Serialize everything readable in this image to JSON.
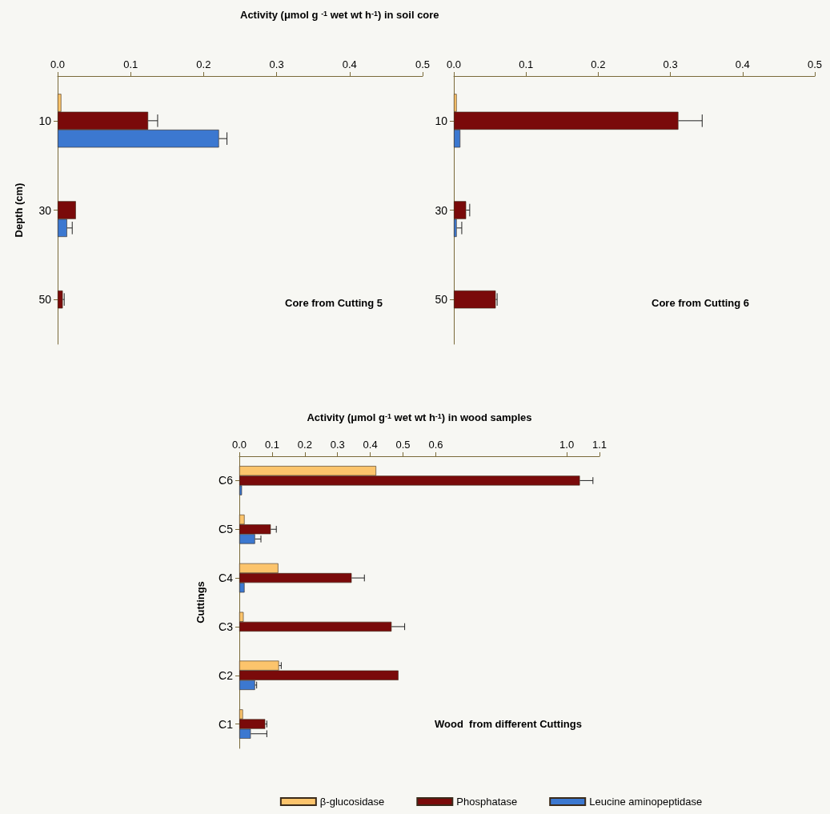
{
  "chart_data": [
    {
      "type": "bar",
      "orientation": "horizontal",
      "title": "Activity (μmol g $^{-1}$ wet wt h$^{-1}$) in soil core",
      "ylabel": "Depth (cm)",
      "annotations": [
        "Core from Cutting 5"
      ],
      "categories": [
        "10",
        "30",
        "50"
      ],
      "xlim": [
        0,
        0.5
      ],
      "xticks": [
        {
          "value": 0,
          "label": "0.0"
        },
        {
          "value": 0.1,
          "label": "0.1"
        },
        {
          "value": 0.2,
          "label": "0.2"
        },
        {
          "value": 0.3,
          "label": "0.3"
        },
        {
          "value": 0.4,
          "label": "0.4"
        },
        {
          "value": 0.5,
          "label": "0.5"
        }
      ],
      "series": [
        {
          "color": "#fcc46c",
          "values": [
            0.005,
            null,
            null
          ]
        },
        {
          "color": "#7a0a0a",
          "values": [
            0.124,
            0.025,
            0.007
          ],
          "errors": [
            [
              0.124,
              0.137
            ],
            null,
            [
              0.007,
              0.009
            ]
          ]
        },
        {
          "color": "#3c78d0",
          "values": [
            0.221,
            0.013,
            null
          ],
          "errors": [
            [
              0.221,
              0.232
            ],
            [
              0.013,
              0.02
            ],
            null
          ]
        }
      ]
    },
    {
      "type": "bar",
      "orientation": "horizontal",
      "annotations": [
        "Core from Cutting 6"
      ],
      "categories": [
        "10",
        "30",
        "50"
      ],
      "xlim": [
        0,
        0.5
      ],
      "xticks": [
        {
          "value": 0,
          "label": "0.0"
        },
        {
          "value": 0.1,
          "label": "0.1"
        },
        {
          "value": 0.2,
          "label": "0.2"
        },
        {
          "value": 0.3,
          "label": "0.3"
        },
        {
          "value": 0.4,
          "label": "0.4"
        },
        {
          "value": 0.5,
          "label": "0.5"
        }
      ],
      "series": [
        {
          "color": "#fcc46c",
          "values": [
            0.004,
            null,
            null
          ]
        },
        {
          "color": "#7a0a0a",
          "values": [
            0.311,
            0.017,
            0.058
          ],
          "errors": [
            [
              0.311,
              0.344
            ],
            [
              0.017,
              0.022
            ],
            [
              0.058,
              0.06
            ]
          ]
        },
        {
          "color": "#3c78d0",
          "values": [
            0.009,
            0.004,
            null
          ],
          "errors": [
            null,
            [
              0.004,
              0.011
            ],
            null
          ]
        }
      ]
    },
    {
      "type": "bar",
      "orientation": "horizontal",
      "xlabel": "Activity (μmol g$^{-1}$ wet wt h$^{-1}$) in wood samples",
      "ylabel": "Cuttings",
      "annotations": [
        "Wood  from different Cuttings"
      ],
      "categories": [
        "C6",
        "C5",
        "C4",
        "C3",
        "C2",
        "C1"
      ],
      "legend": "bottom",
      "xlim": [
        0,
        1.1
      ],
      "xticks": [
        {
          "value": 0,
          "label": "0.0"
        },
        {
          "value": 0.1,
          "label": "0.1"
        },
        {
          "value": 0.2,
          "label": "0.2"
        },
        {
          "value": 0.3,
          "label": "0.3"
        },
        {
          "value": 0.4,
          "label": "0.4"
        },
        {
          "value": 0.5,
          "label": "0.5"
        },
        {
          "value": 0.6,
          "label": "0.6"
        },
        {
          "value": 1.0,
          "label": "1.0"
        },
        {
          "value": 1.1,
          "label": "1.1"
        }
      ],
      "series": [
        {
          "name": "β-glucosidase",
          "color": "#fcc46c",
          "values": [
            0.418,
            0.016,
            0.119,
            0.013,
            0.121,
            0.011
          ],
          "errors": [
            null,
            null,
            null,
            null,
            [
              0.121,
              0.128
            ],
            null
          ]
        },
        {
          "name": "Phosphatase",
          "color": "#7a0a0a",
          "values": [
            1.04,
            0.096,
            0.343,
            0.465,
            0.486,
            0.079
          ],
          "errors": [
            [
              1.04,
              1.08
            ],
            [
              0.096,
              0.113
            ],
            [
              0.343,
              0.382
            ],
            [
              0.465,
              0.505
            ],
            null,
            [
              0.079,
              0.084
            ]
          ]
        },
        {
          "name": "Leucine aminopeptidase",
          "color": "#3c78d0",
          "values": [
            0.008,
            0.048,
            0.016,
            null,
            0.048,
            0.035
          ],
          "errors": [
            null,
            [
              0.048,
              0.066
            ],
            null,
            null,
            [
              0.048,
              0.053
            ],
            [
              0.035,
              0.084
            ]
          ]
        }
      ]
    }
  ]
}
